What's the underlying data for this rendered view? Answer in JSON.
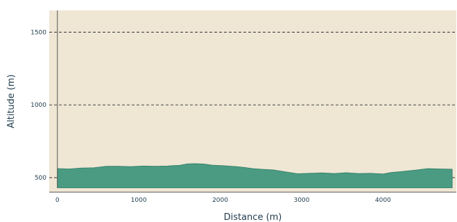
{
  "chart_data": {
    "type": "area",
    "title": "",
    "xlabel": "Distance (m)",
    "ylabel": "Altitude (m)",
    "xlim": [
      -100,
      4900
    ],
    "ylim": [
      400,
      1650
    ],
    "baseline": 430,
    "x_ticks": [
      0,
      1000,
      2000,
      3000,
      4000
    ],
    "x_tick_labels": [
      "0",
      "1000",
      "2000",
      "3000",
      "4000"
    ],
    "y_ticks": [
      500,
      1000,
      1500
    ],
    "y_tick_labels": [
      "500",
      "1000",
      "1500"
    ],
    "grid": {
      "y_dashed": true,
      "x": false
    },
    "legend": "none",
    "colors": {
      "plot_background": "#efe6d4",
      "fill": "#4a9b82",
      "fill_edge": "#2f7d66",
      "grid": "#444444",
      "axis": "#555555",
      "text": "#1f3b4d"
    },
    "series": [
      {
        "x": [
          0,
          150,
          300,
          450,
          600,
          750,
          900,
          1050,
          1200,
          1350,
          1500,
          1600,
          1700,
          1800,
          1900,
          2050,
          2200,
          2300,
          2400,
          2500,
          2650,
          2800,
          2950,
          3100,
          3250,
          3400,
          3550,
          3700,
          3850,
          4000,
          4100,
          4250,
          4400,
          4550,
          4700,
          4850
        ],
        "y": [
          562,
          560,
          566,
          568,
          578,
          578,
          576,
          580,
          578,
          580,
          585,
          595,
          596,
          594,
          586,
          582,
          576,
          570,
          562,
          558,
          553,
          540,
          527,
          530,
          533,
          528,
          534,
          528,
          530,
          525,
          535,
          543,
          552,
          562,
          560,
          558
        ]
      }
    ]
  }
}
